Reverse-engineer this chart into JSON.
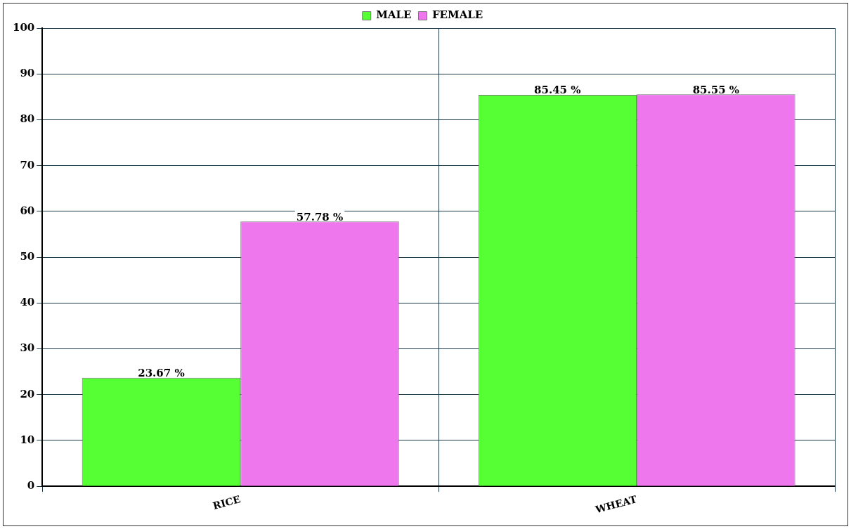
{
  "chart_data": {
    "type": "bar",
    "categories": [
      "RICE",
      "WHEAT"
    ],
    "series": [
      {
        "name": "MALE",
        "color": "#55ff33",
        "values": [
          23.67,
          85.45
        ],
        "value_labels": [
          "23.67 %",
          "85.45 %"
        ]
      },
      {
        "name": "FEMALE",
        "color": "#ee77ee",
        "values": [
          57.78,
          85.55
        ],
        "value_labels": [
          "57.78 %",
          "85.55 %"
        ]
      }
    ],
    "ylim": [
      0,
      100
    ],
    "yticks": [
      0,
      10,
      20,
      30,
      40,
      50,
      60,
      70,
      80,
      90,
      100
    ],
    "grid": true,
    "legend": "top"
  }
}
